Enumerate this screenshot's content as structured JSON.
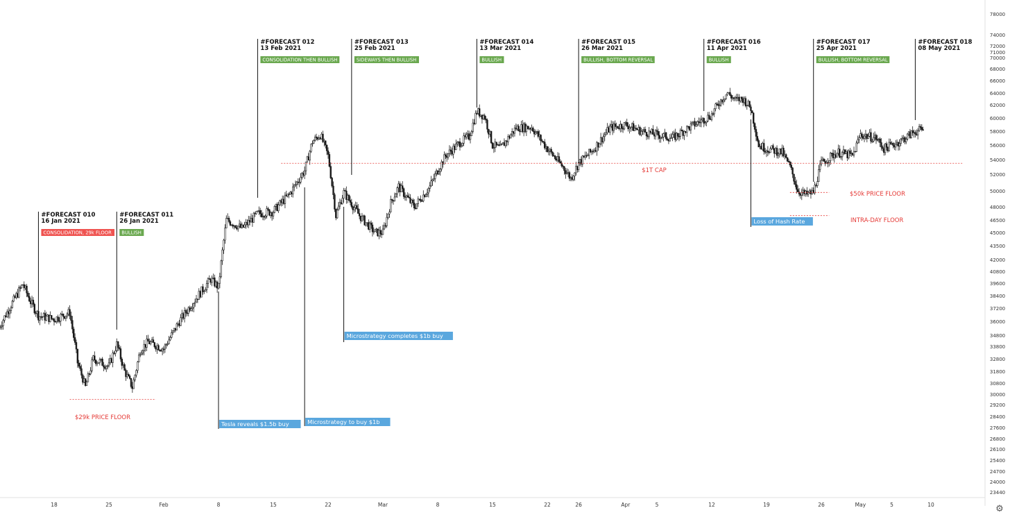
{
  "chart_data": {
    "type": "candlestick",
    "title": "",
    "xlabel": "",
    "ylabel": "",
    "ylim": [
      22800,
      79000
    ],
    "grid": false,
    "y_ticks": [
      78000,
      74000,
      72000,
      71000,
      70000,
      68000,
      66000,
      64000,
      62000,
      60000,
      58000,
      56000,
      54000,
      52000,
      50000,
      48000,
      46500,
      45000,
      43500,
      42000,
      40800,
      39600,
      38400,
      37200,
      36000,
      34800,
      33800,
      32800,
      31800,
      30800,
      30000,
      29200,
      28400,
      27600,
      26800,
      26100,
      25400,
      24700,
      24000,
      23440
    ],
    "x_ticks": [
      {
        "label": "18",
        "date": "2021-01-18"
      },
      {
        "label": "25",
        "date": "2021-01-25"
      },
      {
        "label": "Feb",
        "date": "2021-02-01"
      },
      {
        "label": "8",
        "date": "2021-02-08"
      },
      {
        "label": "15",
        "date": "2021-02-15"
      },
      {
        "label": "22",
        "date": "2021-02-22"
      },
      {
        "label": "Mar",
        "date": "2021-03-01"
      },
      {
        "label": "8",
        "date": "2021-03-08"
      },
      {
        "label": "15",
        "date": "2021-03-15"
      },
      {
        "label": "22",
        "date": "2021-03-22"
      },
      {
        "label": "26",
        "date": "2021-03-26"
      },
      {
        "label": "Apr",
        "date": "2021-04-01"
      },
      {
        "label": "5",
        "date": "2021-04-05"
      },
      {
        "label": "12",
        "date": "2021-04-12"
      },
      {
        "label": "19",
        "date": "2021-04-19"
      },
      {
        "label": "26",
        "date": "2021-04-26"
      },
      {
        "label": "May",
        "date": "2021-05-01"
      },
      {
        "label": "5",
        "date": "2021-05-05"
      },
      {
        "label": "10",
        "date": "2021-05-10"
      }
    ],
    "candle_interval": "4h",
    "price_path": [
      {
        "date": "2021-01-11",
        "price": 35500
      },
      {
        "date": "2021-01-14",
        "price": 39500
      },
      {
        "date": "2021-01-15",
        "price": 37800
      },
      {
        "date": "2021-01-16",
        "price": 36500
      },
      {
        "date": "2021-01-18",
        "price": 36200
      },
      {
        "date": "2021-01-20",
        "price": 36800
      },
      {
        "date": "2021-01-21",
        "price": 32500
      },
      {
        "date": "2021-01-22",
        "price": 30500
      },
      {
        "date": "2021-01-23",
        "price": 32800
      },
      {
        "date": "2021-01-25",
        "price": 32200
      },
      {
        "date": "2021-01-26",
        "price": 34000
      },
      {
        "date": "2021-01-27",
        "price": 31800
      },
      {
        "date": "2021-01-28",
        "price": 30500
      },
      {
        "date": "2021-01-29",
        "price": 33500
      },
      {
        "date": "2021-01-30",
        "price": 34200
      },
      {
        "date": "2021-02-01",
        "price": 33600
      },
      {
        "date": "2021-02-03",
        "price": 36000
      },
      {
        "date": "2021-02-05",
        "price": 38000
      },
      {
        "date": "2021-02-07",
        "price": 40000
      },
      {
        "date": "2021-02-08",
        "price": 39200
      },
      {
        "date": "2021-02-09",
        "price": 46500
      },
      {
        "date": "2021-02-11",
        "price": 45500
      },
      {
        "date": "2021-02-13",
        "price": 47200
      },
      {
        "date": "2021-02-15",
        "price": 47500
      },
      {
        "date": "2021-02-17",
        "price": 49500
      },
      {
        "date": "2021-02-19",
        "price": 52500
      },
      {
        "date": "2021-02-20",
        "price": 56500
      },
      {
        "date": "2021-02-21",
        "price": 57500
      },
      {
        "date": "2021-02-22",
        "price": 54500
      },
      {
        "date": "2021-02-23",
        "price": 47000
      },
      {
        "date": "2021-02-24",
        "price": 49800
      },
      {
        "date": "2021-02-26",
        "price": 47000
      },
      {
        "date": "2021-02-28",
        "price": 45000
      },
      {
        "date": "2021-03-01",
        "price": 45000
      },
      {
        "date": "2021-03-02",
        "price": 48500
      },
      {
        "date": "2021-03-03",
        "price": 50500
      },
      {
        "date": "2021-03-05",
        "price": 48000
      },
      {
        "date": "2021-03-07",
        "price": 50500
      },
      {
        "date": "2021-03-09",
        "price": 54500
      },
      {
        "date": "2021-03-11",
        "price": 56500
      },
      {
        "date": "2021-03-12",
        "price": 57200
      },
      {
        "date": "2021-03-13",
        "price": 61000
      },
      {
        "date": "2021-03-14",
        "price": 60200
      },
      {
        "date": "2021-03-15",
        "price": 56000
      },
      {
        "date": "2021-03-16",
        "price": 55500
      },
      {
        "date": "2021-03-18",
        "price": 58500
      },
      {
        "date": "2021-03-20",
        "price": 58600
      },
      {
        "date": "2021-03-22",
        "price": 55500
      },
      {
        "date": "2021-03-24",
        "price": 53000
      },
      {
        "date": "2021-03-25",
        "price": 51500
      },
      {
        "date": "2021-03-26",
        "price": 53500
      },
      {
        "date": "2021-03-28",
        "price": 55500
      },
      {
        "date": "2021-03-30",
        "price": 58500
      },
      {
        "date": "2021-04-01",
        "price": 59000
      },
      {
        "date": "2021-04-03",
        "price": 58000
      },
      {
        "date": "2021-04-05",
        "price": 57500
      },
      {
        "date": "2021-04-07",
        "price": 57000
      },
      {
        "date": "2021-04-09",
        "price": 58500
      },
      {
        "date": "2021-04-11",
        "price": 59800
      },
      {
        "date": "2021-04-12",
        "price": 60500
      },
      {
        "date": "2021-04-13",
        "price": 62500
      },
      {
        "date": "2021-04-14",
        "price": 64000
      },
      {
        "date": "2021-04-15",
        "price": 62800
      },
      {
        "date": "2021-04-16",
        "price": 63000
      },
      {
        "date": "2021-04-17",
        "price": 61500
      },
      {
        "date": "2021-04-18",
        "price": 56000
      },
      {
        "date": "2021-04-19",
        "price": 55500
      },
      {
        "date": "2021-04-21",
        "price": 55000
      },
      {
        "date": "2021-04-22",
        "price": 53000
      },
      {
        "date": "2021-04-23",
        "price": 50000
      },
      {
        "date": "2021-04-24",
        "price": 49500
      },
      {
        "date": "2021-04-25",
        "price": 49800
      },
      {
        "date": "2021-04-26",
        "price": 53500
      },
      {
        "date": "2021-04-28",
        "price": 55000
      },
      {
        "date": "2021-04-30",
        "price": 54500
      },
      {
        "date": "2021-05-01",
        "price": 57500
      },
      {
        "date": "2021-05-03",
        "price": 57000
      },
      {
        "date": "2021-05-04",
        "price": 55500
      },
      {
        "date": "2021-05-06",
        "price": 56500
      },
      {
        "date": "2021-05-08",
        "price": 58000
      },
      {
        "date": "2021-05-09",
        "price": 58200
      }
    ],
    "horizontal_lines": [
      {
        "label": "$29k PRICE FLOOR",
        "price": 29600,
        "start": "2021-01-20",
        "end": "2021-01-31",
        "color": "#e53935"
      },
      {
        "label": "$1T CAP",
        "price": 53500,
        "start": "2021-02-16",
        "end": "2021-05-14",
        "color": "#e53935"
      },
      {
        "label": "$50k PRICE FLOOR",
        "price": 49800,
        "start": "2021-04-22",
        "end": "2021-04-27",
        "color": "#e53935"
      },
      {
        "label": "INTRA-DAY FLOOR",
        "price": 47000,
        "start": "2021-04-22",
        "end": "2021-04-27",
        "color": "#e53935"
      }
    ],
    "forecasts": [
      {
        "id": "#FORECAST 010",
        "date_text": "16 Jan 2021",
        "date": "2021-01-16",
        "tag": "CONSOLIDATION, 29k FLOOR",
        "tag_color": "#ef5350"
      },
      {
        "id": "#FORECAST 011",
        "date_text": "26 Jan 2021",
        "date": "2021-01-26",
        "tag": "BULLISH",
        "tag_color": "#6aa84f"
      },
      {
        "id": "#FORECAST 012",
        "date_text": "13 Feb 2021",
        "date": "2021-02-13",
        "tag": "CONSOLIDATION THEN BULLISH",
        "tag_color": "#6aa84f"
      },
      {
        "id": "#FORECAST 013",
        "date_text": "25 Feb 2021",
        "date": "2021-02-25",
        "tag": "SIDEWAYS THEN BULLISH",
        "tag_color": "#6aa84f"
      },
      {
        "id": "#FORECAST 014",
        "date_text": "13 Mar 2021",
        "date": "2021-03-13",
        "tag": "BULLISH",
        "tag_color": "#6aa84f"
      },
      {
        "id": "#FORECAST 015",
        "date_text": "26 Mar 2021",
        "date": "2021-03-26",
        "tag": "BULLISH, BOTTOM REVERSAL",
        "tag_color": "#6aa84f"
      },
      {
        "id": "#FORECAST 016",
        "date_text": "11 Apr 2021",
        "date": "2021-04-11",
        "tag": "BULLISH",
        "tag_color": "#6aa84f"
      },
      {
        "id": "#FORECAST 017",
        "date_text": "25 Apr 2021",
        "date": "2021-04-25",
        "tag": "BULLISH, BOTTOM REVERSAL",
        "tag_color": "#6aa84f"
      },
      {
        "id": "#FORECAST 018",
        "date_text": "08 May 2021",
        "date": "2021-05-08",
        "tag": "",
        "tag_color": ""
      }
    ],
    "events": [
      {
        "label": "Tesla reveals $1.5b buy",
        "date": "2021-02-08"
      },
      {
        "label": "Microstrategy to buy $1b",
        "date": "2021-02-19"
      },
      {
        "label": "Microstrategy completes $1b buy",
        "date": "2021-02-24"
      },
      {
        "label": "Loss of Hash Rate",
        "date": "2021-04-17"
      }
    ]
  },
  "colors": {
    "candle": "#1a1a1a",
    "axis_text": "#333333",
    "event_box": "#5aa7de",
    "event_text": "#ffffff",
    "forecast_line": "#111111",
    "axis_line": "#e0e0e0"
  },
  "ui": {
    "settings_icon": "gear-icon",
    "settings_glyph": "⚙"
  }
}
